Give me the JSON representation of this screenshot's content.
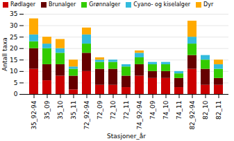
{
  "chart_data": {
    "type": "bar",
    "stacked": true,
    "categories": [
      "35_92-94",
      "35_09",
      "35_10",
      "35_11",
      "72_92-94",
      "72_09",
      "72_10",
      "72_11",
      "74_92-94",
      "74_09",
      "74_10",
      "74_11",
      "82_92-94",
      "82_10",
      "82_11"
    ],
    "series": [
      {
        "name": "Rødlager",
        "color": "#cc0000",
        "values": [
          11,
          6,
          8,
          2,
          10,
          4,
          4,
          3,
          8,
          7,
          7,
          3,
          11,
          4,
          4
        ]
      },
      {
        "name": "Brunalger",
        "color": "#660000",
        "values": [
          9,
          7,
          5,
          6,
          8,
          7,
          7,
          5,
          5,
          3,
          3,
          4,
          6,
          7,
          3
        ]
      },
      {
        "name": "Grønnalger",
        "color": "#33cc00",
        "values": [
          3,
          7,
          5,
          3,
          4,
          3,
          3,
          4,
          3,
          3,
          3,
          2,
          5,
          4,
          4
        ]
      },
      {
        "name": "Cyano- og kiselalger",
        "color": "#33bbdd",
        "values": [
          3,
          2,
          2,
          1,
          4,
          1,
          1,
          1,
          2,
          1,
          1,
          1,
          3,
          2,
          2
        ]
      },
      {
        "name": "Dyr",
        "color": "#ffaa00",
        "values": [
          7,
          3,
          4,
          3,
          3,
          1,
          0,
          0,
          1,
          0,
          0,
          0,
          7,
          0,
          2
        ]
      }
    ],
    "xlabel": "Stasjoner_år",
    "ylabel": "Antall taxa",
    "ylim": [
      0,
      35
    ],
    "yticks": [
      0,
      5,
      10,
      15,
      20,
      25,
      30,
      35
    ],
    "grid": true,
    "legend": "upper left"
  }
}
